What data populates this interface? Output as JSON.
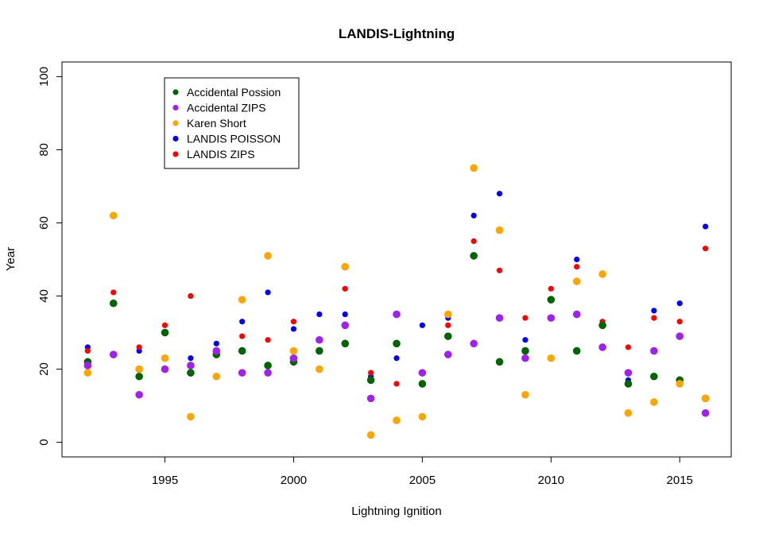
{
  "chart_data": {
    "type": "scatter",
    "title": "LANDIS-Lightning",
    "xlabel": "Lightning Ignition",
    "ylabel": "Year",
    "xlim": [
      1991,
      2017
    ],
    "ylim": [
      -4,
      104
    ],
    "xticks": [
      1995,
      2000,
      2005,
      2010,
      2015
    ],
    "yticks": [
      0,
      20,
      40,
      60,
      80,
      100
    ],
    "grid": false,
    "legend_position": "top-left",
    "x": [
      1992,
      1993,
      1994,
      1995,
      1996,
      1997,
      1998,
      1999,
      2000,
      2001,
      2002,
      2003,
      2004,
      2005,
      2006,
      2007,
      2008,
      2009,
      2010,
      2011,
      2012,
      2013,
      2014,
      2015,
      2016
    ],
    "series": [
      {
        "name": "LANDIS POISSON",
        "color": "#0000ff",
        "values": [
          26,
          38,
          25,
          30,
          23,
          27,
          33,
          41,
          31,
          35,
          35,
          18,
          23,
          32,
          34,
          62,
          68,
          28,
          39,
          50,
          32,
          17,
          36,
          38,
          59
        ]
      },
      {
        "name": "LANDIS ZIPS",
        "color": "#ff0000",
        "values": [
          25,
          41,
          26,
          32,
          40,
          25,
          29,
          28,
          33,
          28,
          42,
          19,
          16,
          19,
          32,
          55,
          47,
          34,
          42,
          48,
          33,
          26,
          34,
          33,
          53
        ]
      },
      {
        "name": "Accidental Possion",
        "color": "#006400",
        "values": [
          22,
          38,
          18,
          30,
          19,
          24,
          25,
          21,
          22,
          25,
          27,
          17,
          27,
          16,
          29,
          51,
          22,
          25,
          39,
          25,
          32,
          16,
          18,
          17,
          12
        ]
      },
      {
        "name": "Accidental ZIPS",
        "color": "#a020f0",
        "values": [
          21,
          24,
          13,
          20,
          21,
          25,
          19,
          19,
          23,
          28,
          32,
          12,
          35,
          19,
          24,
          27,
          34,
          23,
          34,
          35,
          26,
          19,
          25,
          29,
          8
        ]
      },
      {
        "name": "Karen Short",
        "color": "#ffa500",
        "values": [
          19,
          62,
          20,
          23,
          7,
          18,
          39,
          51,
          25,
          20,
          48,
          2,
          6,
          7,
          35,
          75,
          58,
          13,
          23,
          44,
          46,
          8,
          11,
          16,
          12
        ]
      }
    ],
    "legend_order": [
      "Accidental Possion",
      "Accidental ZIPS",
      "Karen Short",
      "LANDIS POISSON",
      "LANDIS ZIPS"
    ]
  }
}
